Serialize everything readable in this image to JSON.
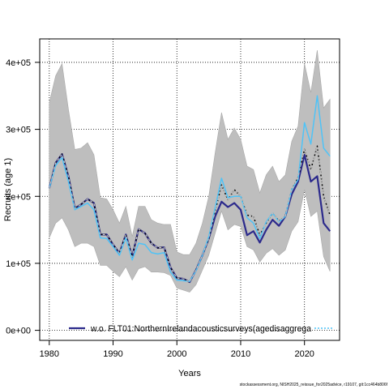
{
  "chart_data": {
    "type": "line",
    "xlabel": "Years",
    "ylabel": "Recruits (age 1)",
    "xlim": [
      1978.5,
      2025.5
    ],
    "ylim": [
      -15000,
      435000
    ],
    "x_ticks": [
      1980,
      1990,
      2000,
      2010,
      2020
    ],
    "y_ticks": [
      0,
      100000,
      200000,
      300000,
      400000
    ],
    "y_tick_labels": [
      "0e+00",
      "1e+05",
      "2e+05",
      "3e+05",
      "4e+05"
    ],
    "grid": true,
    "years": [
      1980,
      1981,
      1982,
      1983,
      1984,
      1985,
      1986,
      1987,
      1988,
      1989,
      1990,
      1991,
      1992,
      1993,
      1994,
      1995,
      1996,
      1997,
      1998,
      1999,
      2000,
      2001,
      2002,
      2003,
      2004,
      2005,
      2006,
      2007,
      2008,
      2009,
      2010,
      2011,
      2012,
      2013,
      2014,
      2015,
      2016,
      2017,
      2018,
      2019,
      2020,
      2021,
      2022,
      2023,
      2024
    ],
    "band": {
      "color": "#bebebe",
      "upper": [
        340000,
        380000,
        398000,
        330000,
        270000,
        272000,
        280000,
        262000,
        198000,
        196000,
        180000,
        160000,
        185000,
        140000,
        185000,
        185000,
        165000,
        160000,
        158000,
        158000,
        117000,
        113000,
        113000,
        130000,
        160000,
        200000,
        265000,
        325000,
        285000,
        302000,
        285000,
        245000,
        240000,
        205000,
        232000,
        245000,
        222000,
        232000,
        282000,
        305000,
        398000,
        355000,
        418000,
        332000,
        345000
      ],
      "lower": [
        138000,
        160000,
        168000,
        150000,
        125000,
        130000,
        130000,
        125000,
        97000,
        97000,
        88000,
        80000,
        95000,
        75000,
        92000,
        95000,
        87000,
        87000,
        86000,
        82000,
        63000,
        60000,
        57000,
        68000,
        90000,
        112000,
        145000,
        178000,
        150000,
        158000,
        155000,
        125000,
        120000,
        102000,
        115000,
        122000,
        112000,
        120000,
        148000,
        162000,
        210000,
        170000,
        178000,
        110000,
        88000
      ]
    },
    "series": [
      {
        "name": "w.o. FLT01:NorthernIrelandacousticsurveys(agedisaggrega",
        "color": "#2c2a8c",
        "width": 2.2,
        "dash": "",
        "values": [
          212000,
          250000,
          263000,
          230000,
          182000,
          188000,
          196000,
          190000,
          143000,
          143000,
          128000,
          115000,
          143000,
          110000,
          151000,
          145000,
          130000,
          123000,
          124000,
          94000,
          78000,
          77000,
          72000,
          90000,
          112000,
          137000,
          170000,
          192000,
          184000,
          190000,
          180000,
          142000,
          148000,
          131000,
          150000,
          165000,
          156000,
          170000,
          203000,
          222000,
          262000,
          222000,
          230000,
          160000,
          148000
        ]
      },
      {
        "color": "#4fc3f7",
        "width": 1.5,
        "dash": "",
        "values": [
          212000,
          246000,
          258000,
          222000,
          180000,
          185000,
          190000,
          180000,
          138000,
          137000,
          125000,
          112000,
          138000,
          105000,
          130000,
          128000,
          116000,
          114000,
          116000,
          87000,
          75000,
          74000,
          73000,
          89000,
          112000,
          140000,
          183000,
          227000,
          198000,
          200000,
          200000,
          168000,
          160000,
          137000,
          162000,
          175000,
          162000,
          170000,
          210000,
          225000,
          310000,
          278000,
          350000,
          272000,
          260000
        ]
      },
      {
        "color": "#000000",
        "width": 1.5,
        "dash": "2,2",
        "values": [
          212000,
          250000,
          263000,
          230000,
          182000,
          188000,
          196000,
          190000,
          143000,
          143000,
          128000,
          115000,
          143000,
          110000,
          151000,
          145000,
          130000,
          123000,
          124000,
          94000,
          78000,
          77000,
          72000,
          90000,
          112000,
          137000,
          178000,
          217000,
          195000,
          210000,
          200000,
          172000,
          170000,
          142000,
          160000,
          175000,
          163000,
          170000,
          210000,
          228000,
          270000,
          240000,
          275000,
          200000,
          172000
        ]
      },
      {
        "color": "#bebebe",
        "width": 1.2,
        "dash": "3,3",
        "values": [
          212000,
          250000,
          263000,
          230000,
          182000,
          188000,
          196000,
          190000,
          143000,
          143000,
          128000,
          115000,
          143000,
          110000,
          151000,
          145000,
          130000,
          123000,
          124000,
          94000,
          78000,
          77000,
          72000,
          90000,
          112000,
          137000,
          178000,
          217000,
          195000,
          210000,
          200000,
          172000,
          170000,
          142000,
          160000,
          175000,
          163000,
          170000,
          210000,
          228000,
          270000,
          240000,
          275000,
          200000,
          172000
        ]
      }
    ],
    "legend": {
      "placement": "bottom",
      "entries": [
        {
          "label": "w.o. FLT01:NorthernIrelandacousticsurveys(agedisaggrega",
          "color": "#2c2a8c"
        },
        {
          "label": "",
          "color": "#4fc3f7"
        }
      ]
    }
  },
  "footer": "stockassessment.org, NISH2025_reissue_for2025advice, r19107, git:1cc464b806f"
}
